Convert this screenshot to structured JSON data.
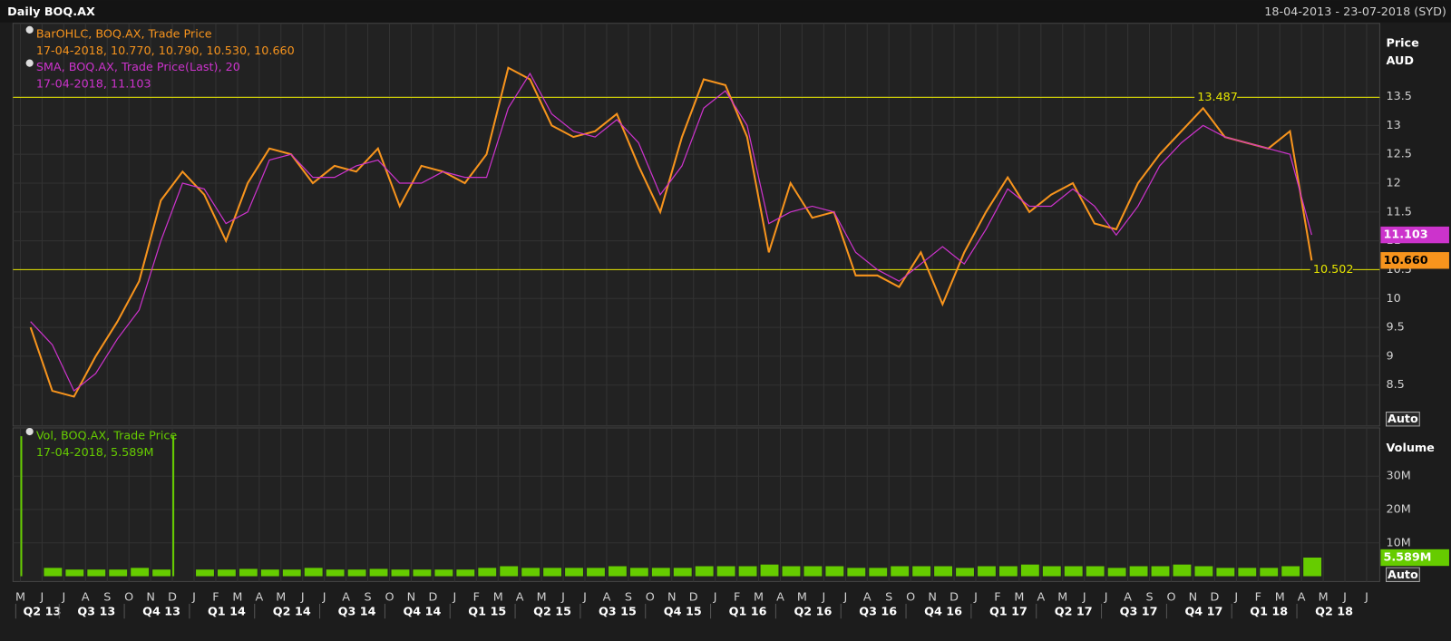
{
  "header": {
    "title": "Daily BOQ.AX",
    "range": "18-04-2013 - 23-07-2018 (SYD)"
  },
  "chart_data": [
    {
      "type": "line",
      "ylabel": "Price",
      "yunit": "AUD",
      "auto_button": "Auto",
      "categories": [
        "M",
        "J",
        "J",
        "A",
        "S",
        "O",
        "N",
        "D",
        "J",
        "F",
        "M",
        "A",
        "M",
        "J",
        "J",
        "A",
        "S",
        "O",
        "N",
        "D",
        "J",
        "F",
        "M",
        "A",
        "M",
        "J",
        "J",
        "A",
        "S",
        "O",
        "N",
        "D",
        "J",
        "F",
        "M",
        "A",
        "M",
        "J",
        "J",
        "A",
        "S",
        "O",
        "N",
        "D",
        "J",
        "F",
        "M",
        "A",
        "M",
        "J",
        "J",
        "A",
        "S",
        "O",
        "N",
        "D",
        "J",
        "F",
        "M",
        "A",
        "M",
        "J",
        "J"
      ],
      "quarters": [
        "Q2 13",
        "Q3 13",
        "Q4 13",
        "Q1 14",
        "Q2 14",
        "Q3 14",
        "Q4 14",
        "Q1 15",
        "Q2 15",
        "Q3 15",
        "Q4 15",
        "Q1 16",
        "Q2 16",
        "Q3 16",
        "Q4 16",
        "Q1 17",
        "Q2 17",
        "Q3 17",
        "Q4 17",
        "Q1 18",
        "Q2 18"
      ],
      "series": [
        {
          "name": "BarOHLC, BOQ.AX, Trade Price",
          "detail": "17-04-2018, 10.770, 10.790, 10.530, 10.660",
          "color": "#f7941d",
          "last_value": {
            "value": 10.66,
            "label": "10.660"
          },
          "values": [
            9.5,
            8.4,
            8.3,
            9.0,
            9.6,
            10.3,
            11.7,
            12.2,
            11.8,
            11.0,
            12.0,
            12.6,
            12.5,
            12.0,
            12.3,
            12.2,
            12.6,
            11.6,
            12.3,
            12.2,
            12.0,
            12.5,
            14.0,
            13.8,
            13.0,
            12.8,
            12.9,
            13.2,
            12.3,
            11.5,
            12.8,
            13.8,
            13.7,
            12.8,
            10.8,
            12.0,
            11.4,
            11.5,
            10.4,
            10.4,
            10.2,
            10.8,
            9.9,
            10.8,
            11.5,
            12.1,
            11.5,
            11.8,
            12.0,
            11.3,
            11.2,
            12.0,
            12.5,
            12.9,
            13.3,
            12.8,
            12.7,
            12.6,
            12.9,
            10.66,
            null,
            null,
            null
          ]
        },
        {
          "name": "SMA, BOQ.AX, Trade Price(Last),  20",
          "detail": "17-04-2018, 11.103",
          "color": "#cc33cc",
          "last_value": 11.103,
          "values": [
            9.6,
            9.2,
            8.4,
            8.7,
            9.3,
            9.8,
            11.0,
            12.0,
            11.9,
            11.3,
            11.5,
            12.4,
            12.5,
            12.1,
            12.1,
            12.3,
            12.4,
            12.0,
            12.0,
            12.2,
            12.1,
            12.1,
            13.3,
            13.9,
            13.2,
            12.9,
            12.8,
            13.1,
            12.7,
            11.8,
            12.3,
            13.3,
            13.6,
            13.0,
            11.3,
            11.5,
            11.6,
            11.5,
            10.8,
            10.5,
            10.3,
            10.6,
            10.9,
            10.6,
            11.2,
            11.9,
            11.6,
            11.6,
            11.9,
            11.6,
            11.1,
            11.6,
            12.3,
            12.7,
            13.0,
            12.8,
            12.7,
            12.6,
            12.5,
            11.103,
            null,
            null,
            null
          ]
        }
      ],
      "hlines": [
        13.487,
        10.502
      ],
      "hline_color": "#e6e600",
      "ylim": [
        7.79,
        14.77
      ],
      "yticks": [
        8.5,
        9,
        9.5,
        10,
        10.5,
        11,
        11.5,
        12,
        12.5,
        13,
        13.5
      ],
      "grid": true
    },
    {
      "type": "bar",
      "ylabel": "Volume",
      "auto_button": "Auto",
      "series": [
        {
          "name": "Vol, BOQ.AX, Trade Price",
          "detail": "17-04-2018, 5.589M",
          "color": "#66cc00",
          "last_value": {
            "value": 5.589,
            "label": "5.589M"
          },
          "values": [
            42,
            2.5,
            2,
            2,
            2,
            2.5,
            2,
            42,
            2,
            2,
            2.2,
            2,
            2,
            2.5,
            2,
            2,
            2.2,
            2,
            2,
            2,
            2,
            2.5,
            3,
            2.5,
            2.5,
            2.5,
            2.5,
            3,
            2.5,
            2.5,
            2.5,
            3,
            3,
            3,
            3.5,
            3,
            3,
            3,
            2.5,
            2.5,
            3,
            3,
            3,
            2.5,
            3,
            3,
            3.5,
            3,
            3,
            3,
            2.5,
            3,
            3,
            3.5,
            3,
            2.5,
            2.5,
            2.5,
            3,
            5.589,
            null,
            null,
            null
          ]
        }
      ],
      "ylim": [
        -1.6,
        44.5
      ],
      "yticks": [
        {
          "value": 10,
          "label": "10M"
        },
        {
          "value": 20,
          "label": "20M"
        },
        {
          "value": 30,
          "label": "30M"
        }
      ],
      "grid": true
    }
  ]
}
